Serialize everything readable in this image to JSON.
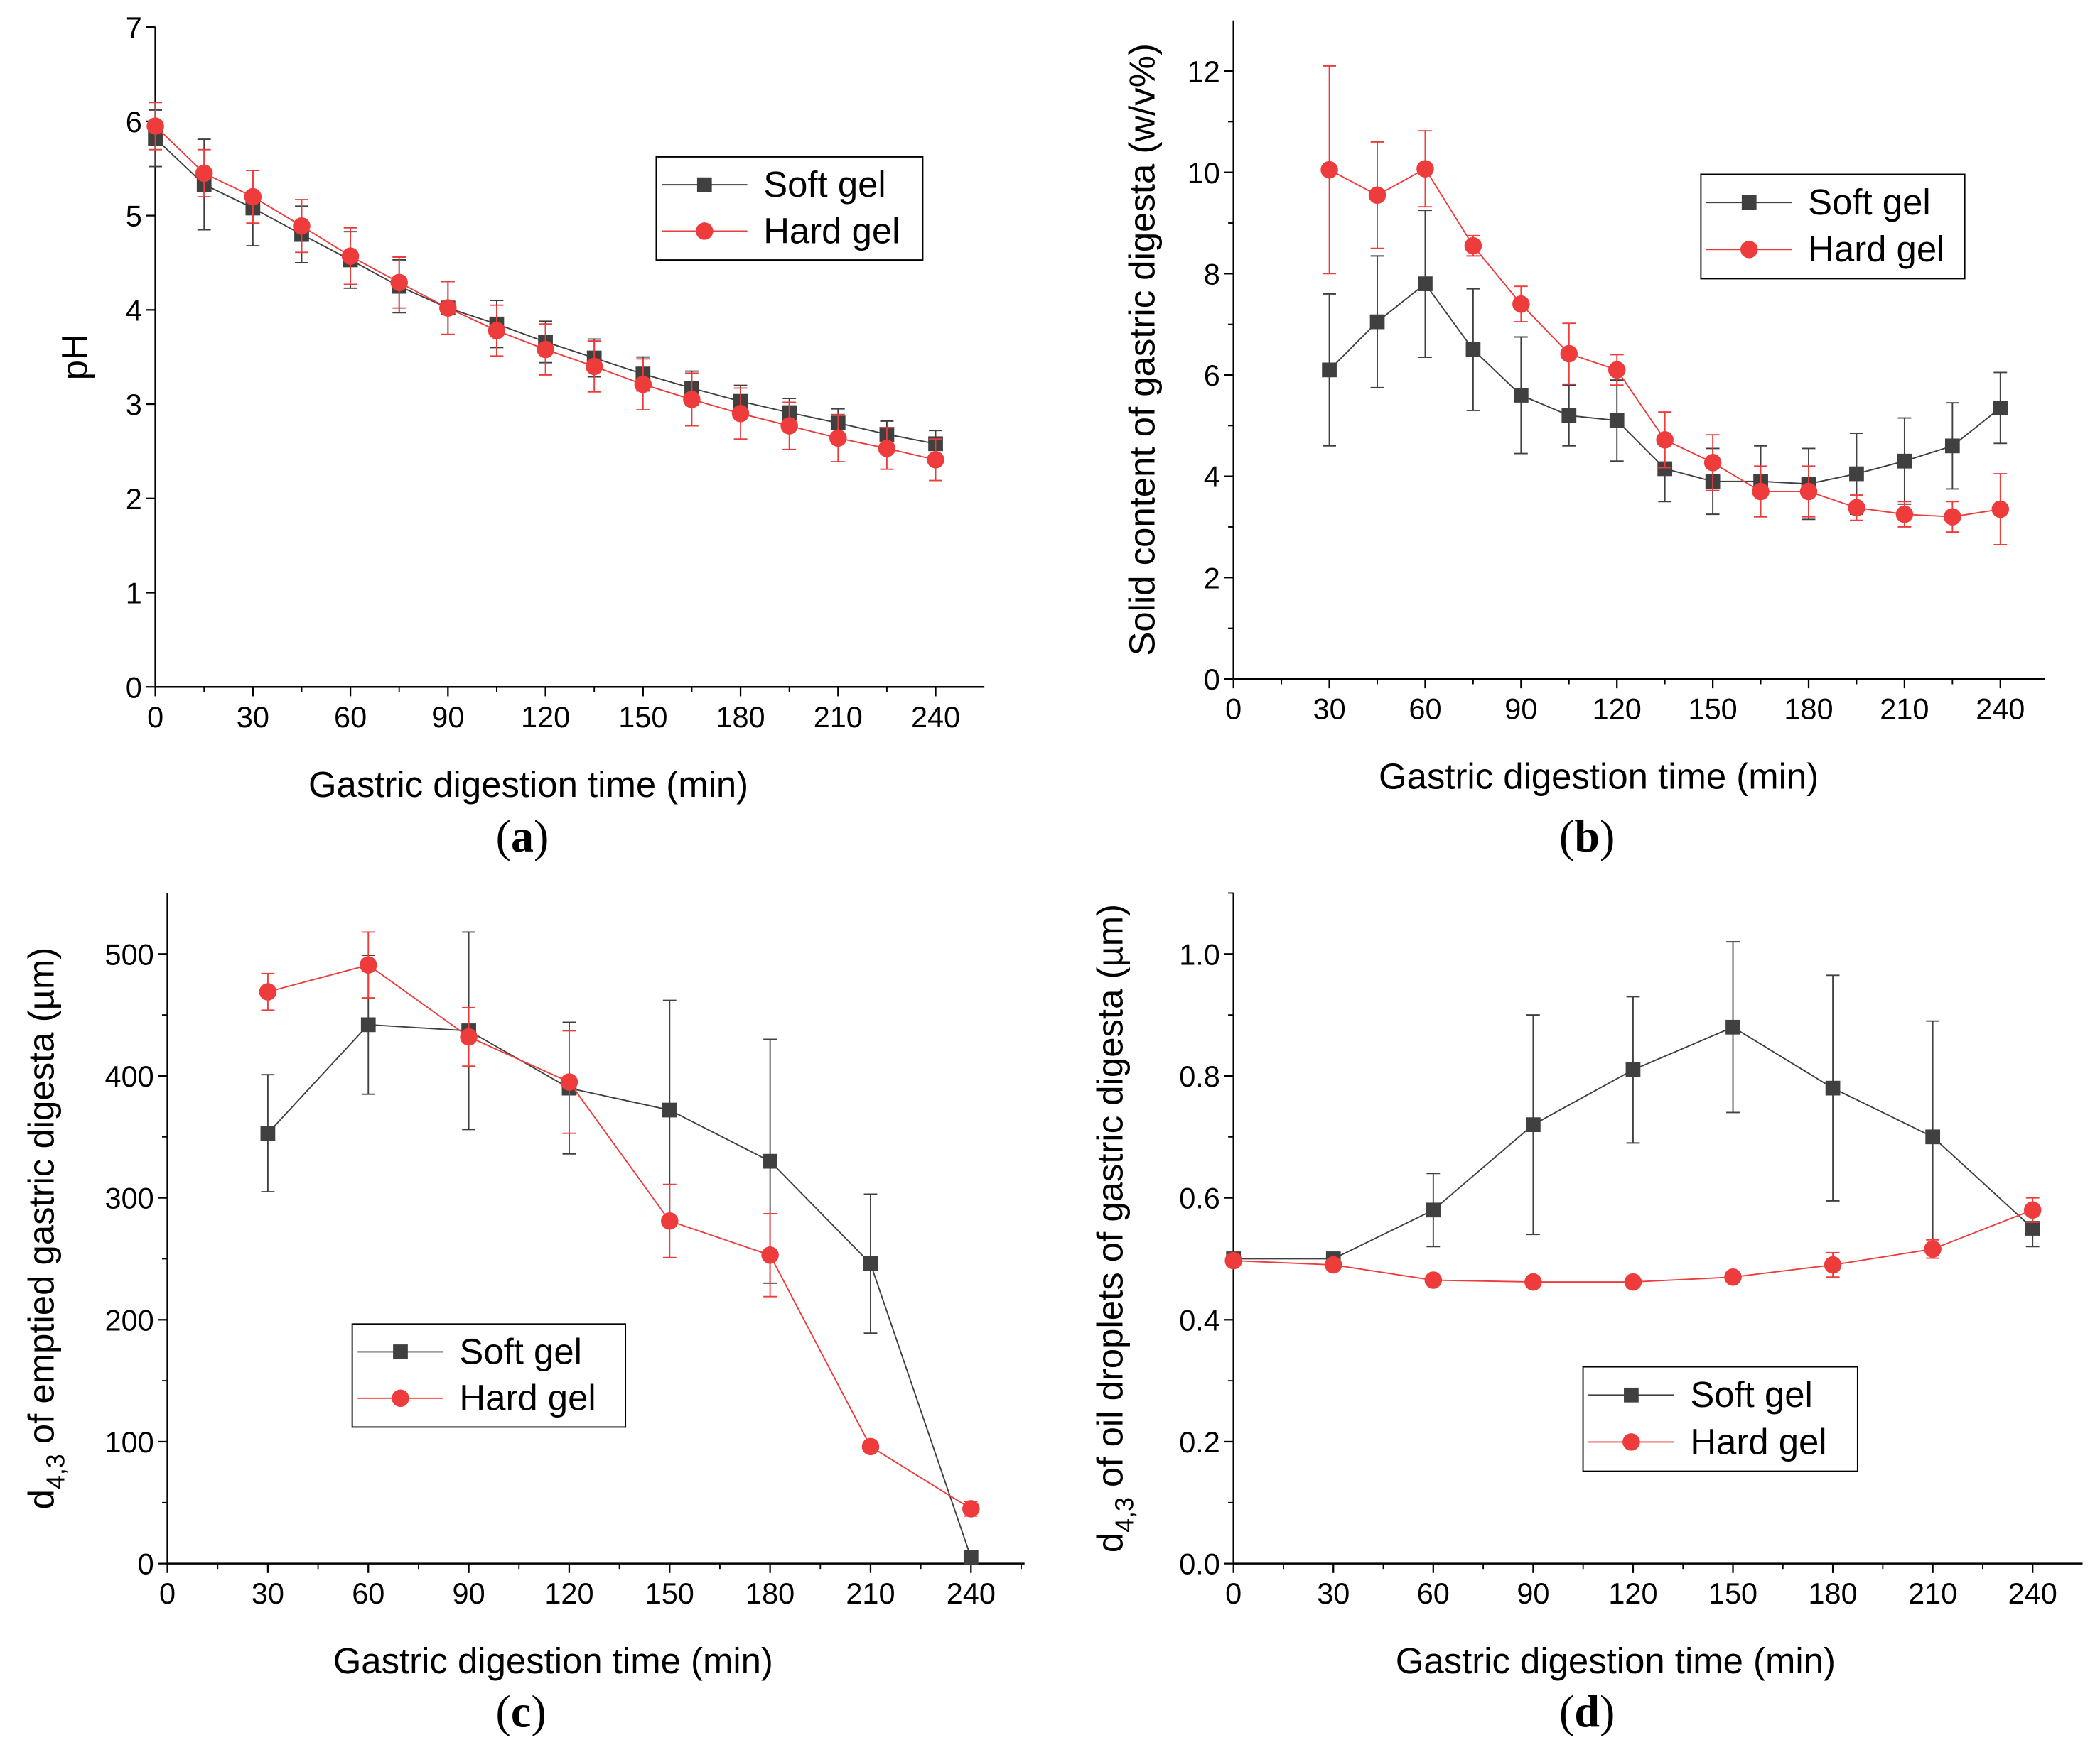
{
  "colors": {
    "soft": "#404040",
    "hard": "#ee3b3b"
  },
  "legend": [
    "Soft gel",
    "Hard gel"
  ],
  "chart_data": [
    {
      "id": "a",
      "panel_label": "a",
      "type": "line",
      "xlabel": "Gastric digestion time (min)",
      "ylabel": {
        "main": "pH"
      },
      "xlim": [
        0,
        255
      ],
      "ylim": [
        0,
        7
      ],
      "xticks": [
        0,
        30,
        60,
        90,
        120,
        150,
        180,
        210,
        240
      ],
      "xminor": 15,
      "yticks": [
        0,
        1,
        2,
        3,
        4,
        5,
        6,
        7
      ],
      "yminor": null,
      "legend_pos": "top-right",
      "series": [
        {
          "name": "Soft gel",
          "x": [
            0,
            15,
            30,
            45,
            60,
            75,
            90,
            105,
            120,
            135,
            150,
            165,
            180,
            195,
            210,
            225,
            240
          ],
          "y": [
            5.82,
            5.33,
            5.08,
            4.8,
            4.53,
            4.25,
            4.02,
            3.85,
            3.66,
            3.49,
            3.32,
            3.17,
            3.03,
            2.91,
            2.8,
            2.68,
            2.58
          ],
          "err": [
            0.3,
            0.48,
            0.4,
            0.3,
            0.3,
            0.28,
            0.28,
            0.25,
            0.22,
            0.2,
            0.18,
            0.18,
            0.17,
            0.15,
            0.15,
            0.14,
            0.14
          ]
        },
        {
          "name": "Hard gel",
          "x": [
            0,
            15,
            30,
            45,
            60,
            75,
            90,
            105,
            120,
            135,
            150,
            165,
            180,
            195,
            210,
            225,
            240
          ],
          "y": [
            5.95,
            5.45,
            5.2,
            4.89,
            4.57,
            4.29,
            4.02,
            3.78,
            3.58,
            3.4,
            3.21,
            3.05,
            2.9,
            2.77,
            2.64,
            2.53,
            2.41
          ],
          "err": [
            0.25,
            0.25,
            0.28,
            0.28,
            0.3,
            0.27,
            0.28,
            0.27,
            0.27,
            0.27,
            0.27,
            0.28,
            0.27,
            0.25,
            0.25,
            0.22,
            0.22
          ]
        }
      ]
    },
    {
      "id": "b",
      "panel_label": "b",
      "type": "line",
      "xlabel": "Gastric digestion time (min)",
      "ylabel": {
        "main": "Solid content of gastric digesta (w/v%)"
      },
      "xlim": [
        0,
        254
      ],
      "ylim": [
        0,
        13
      ],
      "xticks": [
        0,
        30,
        60,
        90,
        120,
        150,
        180,
        210,
        240
      ],
      "xminor": 15,
      "yticks": [
        0,
        2,
        4,
        6,
        8,
        10,
        12
      ],
      "yminor": 1,
      "legend_pos": "top-right",
      "series": [
        {
          "name": "Soft gel",
          "x": [
            30,
            45,
            60,
            75,
            90,
            105,
            120,
            135,
            150,
            165,
            180,
            195,
            210,
            225,
            240
          ],
          "y": [
            6.1,
            7.05,
            7.8,
            6.5,
            5.6,
            5.2,
            5.1,
            4.15,
            3.9,
            3.9,
            3.85,
            4.05,
            4.3,
            4.6,
            5.35
          ],
          "err": [
            1.5,
            1.3,
            1.45,
            1.2,
            1.15,
            0.6,
            0.8,
            0.65,
            0.65,
            0.7,
            0.7,
            0.8,
            0.85,
            0.85,
            0.7
          ]
        },
        {
          "name": "Hard gel",
          "x": [
            30,
            45,
            60,
            75,
            90,
            105,
            120,
            135,
            150,
            165,
            180,
            195,
            210,
            225,
            240
          ],
          "y": [
            10.05,
            9.55,
            10.07,
            8.55,
            7.4,
            6.42,
            6.1,
            4.72,
            4.27,
            3.7,
            3.7,
            3.38,
            3.25,
            3.2,
            3.35
          ],
          "err": [
            2.05,
            1.05,
            0.75,
            0.2,
            0.35,
            0.6,
            0.3,
            0.55,
            0.55,
            0.5,
            0.5,
            0.25,
            0.25,
            0.3,
            0.7
          ]
        }
      ]
    },
    {
      "id": "c",
      "panel_label": "c",
      "type": "line",
      "xlabel": "Gastric digestion time (min)",
      "ylabel": {
        "main": "d",
        "sub": "4,3",
        "rest": " of emptied gastric digesta (µm)"
      },
      "xlim": [
        0,
        256
      ],
      "ylim": [
        0,
        550
      ],
      "xticks": [
        0,
        30,
        60,
        90,
        120,
        150,
        180,
        210,
        240
      ],
      "xminor": 15,
      "yticks": [
        0,
        100,
        200,
        300,
        400,
        500
      ],
      "yminor": 50,
      "legend_pos": "bottom-left",
      "series": [
        {
          "name": "Soft gel",
          "x": [
            30,
            60,
            90,
            120,
            150,
            180,
            210,
            240
          ],
          "y": [
            353,
            442,
            437,
            390,
            372,
            330,
            246,
            5
          ],
          "err": [
            48,
            57,
            81,
            54,
            90,
            100,
            57,
            0
          ]
        },
        {
          "name": "Hard gel",
          "x": [
            30,
            60,
            90,
            120,
            150,
            180,
            210,
            240
          ],
          "y": [
            469,
            491,
            432,
            395,
            281,
            253,
            96,
            45
          ],
          "err": [
            15,
            27,
            24,
            42,
            30,
            34,
            0,
            6
          ]
        }
      ]
    },
    {
      "id": "d",
      "panel_label": "d",
      "type": "line",
      "xlabel": "Gastric digestion time (min)",
      "ylabel": {
        "main": "d",
        "sub": "4,3",
        "rest": " of oil droplets of gastric digesta (µm)"
      },
      "xlim": [
        0,
        255
      ],
      "ylim": [
        0,
        1.1
      ],
      "xticks": [
        0,
        30,
        60,
        90,
        120,
        150,
        180,
        210,
        240
      ],
      "xminor": 15,
      "yticks": [
        0,
        0.2,
        0.4,
        0.6,
        0.8,
        1.0
      ],
      "yminor": 0.1,
      "legend_pos": "bottom-center",
      "series": [
        {
          "name": "Soft gel",
          "x": [
            0,
            30,
            60,
            90,
            120,
            150,
            180,
            210,
            240
          ],
          "y": [
            0.5,
            0.5,
            0.58,
            0.72,
            0.81,
            0.88,
            0.78,
            0.7,
            0.55
          ],
          "err": [
            0,
            0,
            0.06,
            0.18,
            0.12,
            0.14,
            0.185,
            0.19,
            0.03
          ]
        },
        {
          "name": "Hard gel",
          "x": [
            0,
            30,
            60,
            90,
            120,
            150,
            180,
            210,
            240
          ],
          "y": [
            0.497,
            0.49,
            0.465,
            0.462,
            0.462,
            0.47,
            0.49,
            0.516,
            0.58
          ],
          "err": [
            0,
            0,
            0,
            0,
            0,
            0,
            0.02,
            0.015,
            0.02
          ]
        }
      ]
    }
  ]
}
